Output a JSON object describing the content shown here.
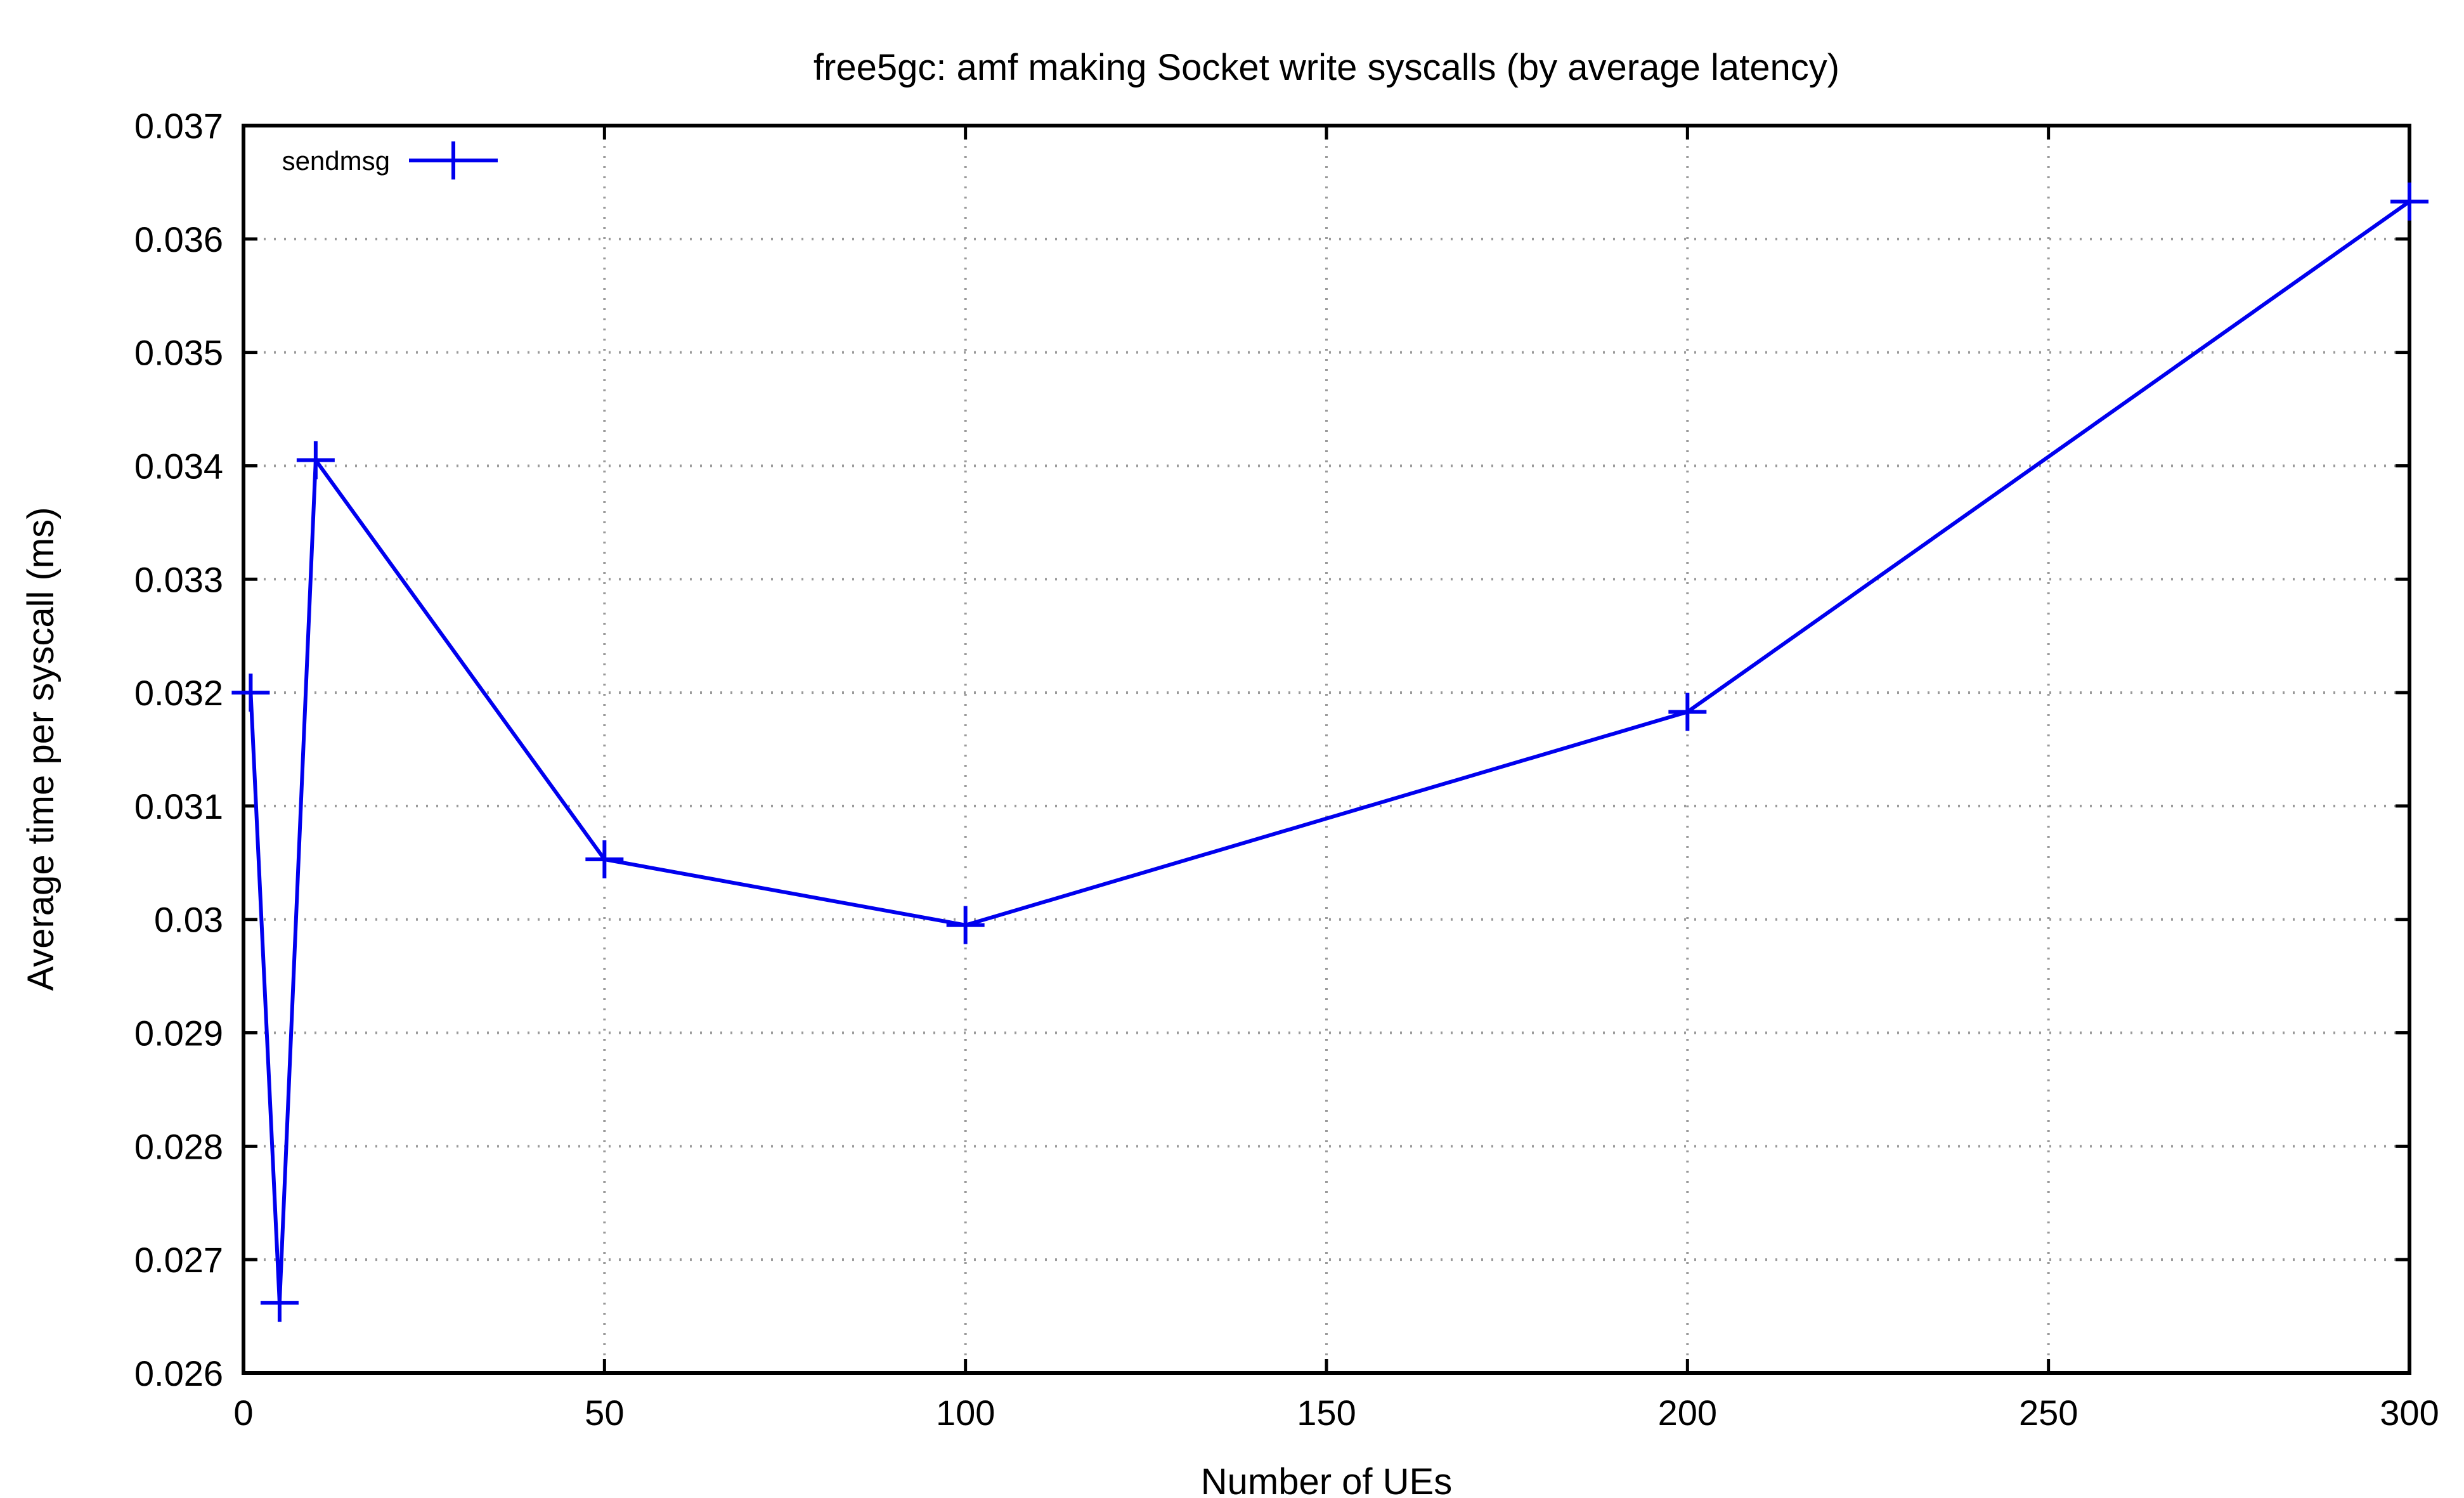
{
  "chart_data": {
    "type": "line",
    "title": "free5gc: amf making Socket write syscalls (by average latency)",
    "xlabel": "Number of UEs",
    "ylabel": "Average time per syscall (ms)",
    "xlim": [
      0,
      300
    ],
    "ylim": [
      0.026,
      0.037
    ],
    "x_ticks": [
      0,
      50,
      100,
      150,
      200,
      250,
      300
    ],
    "x_tick_labels": [
      "0",
      "50",
      "100",
      "150",
      "200",
      "250",
      "300"
    ],
    "y_ticks": [
      0.026,
      0.027,
      0.028,
      0.029,
      0.03,
      0.031,
      0.032,
      0.033,
      0.034,
      0.035,
      0.036,
      0.037
    ],
    "y_tick_labels": [
      "0.026",
      "0.027",
      "0.028",
      "0.029",
      "0.03",
      "0.031",
      "0.032",
      "0.033",
      "0.034",
      "0.035",
      "0.036",
      "0.037"
    ],
    "grid": true,
    "legend_position": "top-left",
    "series": [
      {
        "name": "sendmsg",
        "color": "#0000ee",
        "marker": "plus",
        "x": [
          1,
          5,
          10,
          50,
          100,
          200,
          300
        ],
        "y": [
          0.032,
          0.02662,
          0.03405,
          0.03053,
          0.02995,
          0.03183,
          0.03633
        ]
      }
    ]
  }
}
